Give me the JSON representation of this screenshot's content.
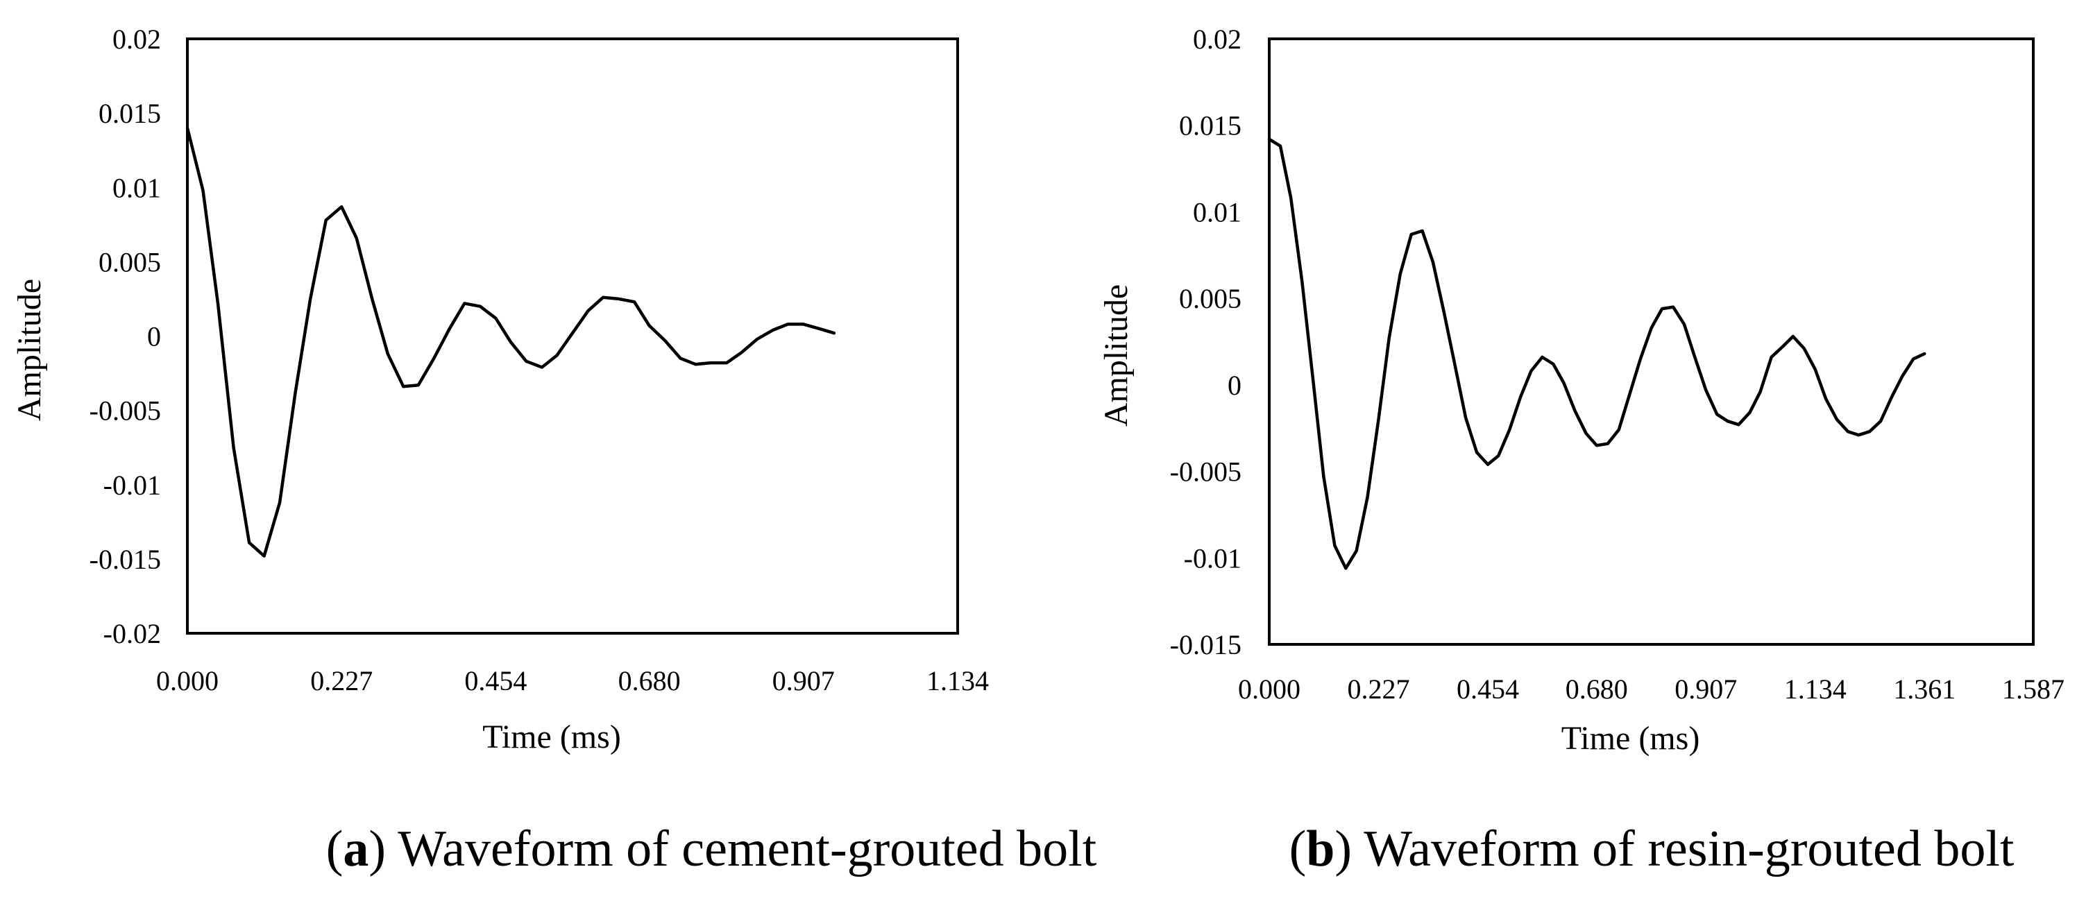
{
  "chart_data": [
    {
      "type": "line",
      "panel_letter": "a",
      "title": "Waveform of cement-grouted bolt",
      "xlabel": "Time (ms)",
      "ylabel": "Amplitude",
      "xlim": [
        0,
        1.134
      ],
      "ylim": [
        -0.02,
        0.02
      ],
      "x_ticks": [
        "0.000",
        "0.227",
        "0.454",
        "0.680",
        "0.907",
        "1.134"
      ],
      "x_tick_values": [
        0,
        0.227,
        0.454,
        0.68,
        0.907,
        1.134
      ],
      "y_ticks": [
        "0.02",
        "0.015",
        "0.01",
        "0.005",
        "0",
        "-0.005",
        "-0.01",
        "-0.015",
        "-0.02"
      ],
      "y_tick_values": [
        0.02,
        0.015,
        0.01,
        0.005,
        0,
        -0.005,
        -0.01,
        -0.015,
        -0.02
      ],
      "grid": false,
      "legend": "none",
      "series": [
        {
          "name": "cement-grouted bolt",
          "x": [
            0,
            0.023,
            0.045,
            0.068,
            0.091,
            0.113,
            0.136,
            0.159,
            0.181,
            0.204,
            0.227,
            0.249,
            0.272,
            0.295,
            0.318,
            0.34,
            0.363,
            0.386,
            0.408,
            0.431,
            0.454,
            0.476,
            0.499,
            0.522,
            0.544,
            0.567,
            0.59,
            0.612,
            0.635,
            0.658,
            0.68,
            0.703,
            0.726,
            0.748,
            0.771,
            0.794,
            0.816,
            0.839,
            0.862,
            0.884,
            0.907,
            0.93,
            0.952
          ],
          "y": [
            0.014,
            0.0098,
            0.0022,
            -0.0075,
            -0.0139,
            -0.0148,
            -0.0112,
            -0.0038,
            0.0025,
            0.0078,
            0.0087,
            0.0066,
            0.0025,
            -0.0012,
            -0.0034,
            -0.0033,
            -0.0015,
            0.0005,
            0.0022,
            0.002,
            0.0012,
            -0.0004,
            -0.0017,
            -0.0021,
            -0.0013,
            0.0002,
            0.0017,
            0.0026,
            0.0025,
            0.0023,
            0.0007,
            -0.0003,
            -0.0015,
            -0.0019,
            -0.0018,
            -0.0018,
            -0.0011,
            -0.0002,
            0.0004,
            0.0008,
            0.0008,
            0.0005,
            0.0002
          ]
        }
      ]
    },
    {
      "type": "line",
      "panel_letter": "b",
      "title": "Waveform of resin-grouted bolt",
      "xlabel": "Time (ms)",
      "ylabel": "Amplitude",
      "xlim": [
        0,
        1.587
      ],
      "ylim": [
        -0.015,
        0.02
      ],
      "x_ticks": [
        "0.000",
        "0.227",
        "0.454",
        "0.680",
        "0.907",
        "1.134",
        "1.361",
        "1.587"
      ],
      "x_tick_values": [
        0,
        0.227,
        0.454,
        0.68,
        0.907,
        1.134,
        1.361,
        1.587
      ],
      "y_ticks": [
        "0.02",
        "0.015",
        "0.01",
        "0.005",
        "0",
        "-0.005",
        "-0.01",
        "-0.015"
      ],
      "y_tick_values": [
        0.02,
        0.015,
        0.01,
        0.005,
        0,
        -0.005,
        -0.01,
        -0.015
      ],
      "grid": false,
      "legend": "none",
      "series": [
        {
          "name": "resin-grouted bolt",
          "x": [
            0,
            0.023,
            0.045,
            0.068,
            0.091,
            0.113,
            0.136,
            0.159,
            0.181,
            0.204,
            0.227,
            0.249,
            0.272,
            0.295,
            0.318,
            0.34,
            0.363,
            0.386,
            0.408,
            0.431,
            0.454,
            0.476,
            0.499,
            0.522,
            0.544,
            0.567,
            0.59,
            0.612,
            0.635,
            0.658,
            0.68,
            0.703,
            0.726,
            0.748,
            0.771,
            0.794,
            0.816,
            0.839,
            0.862,
            0.884,
            0.907,
            0.93,
            0.952,
            0.975,
            0.998,
            1.02,
            1.043,
            1.066,
            1.088,
            1.111,
            1.134,
            1.156,
            1.179,
            1.202,
            1.224,
            1.247,
            1.27,
            1.293,
            1.315,
            1.338,
            1.361
          ],
          "y": [
            0.0142,
            0.0138,
            0.0108,
            0.006,
            0.0003,
            -0.0053,
            -0.0093,
            -0.0106,
            -0.0096,
            -0.0065,
            -0.002,
            0.0027,
            0.0064,
            0.0087,
            0.0089,
            0.0071,
            0.0042,
            0.0011,
            -0.0019,
            -0.0039,
            -0.0046,
            -0.0041,
            -0.0026,
            -0.0007,
            0.0008,
            0.0016,
            0.0012,
            0.0001,
            -0.0015,
            -0.0028,
            -0.0035,
            -0.0034,
            -0.0026,
            -0.0006,
            0.0015,
            0.0033,
            0.0044,
            0.0045,
            0.0035,
            0.0016,
            -0.0003,
            -0.0017,
            -0.0021,
            -0.0023,
            -0.0016,
            -0.0004,
            0.0016,
            0.0022,
            0.0028,
            0.0021,
            0.0009,
            -0.0008,
            -0.002,
            -0.0027,
            -0.0029,
            -0.0027,
            -0.0021,
            -0.0007,
            0.0005,
            0.0015,
            0.0018
          ]
        }
      ]
    }
  ]
}
